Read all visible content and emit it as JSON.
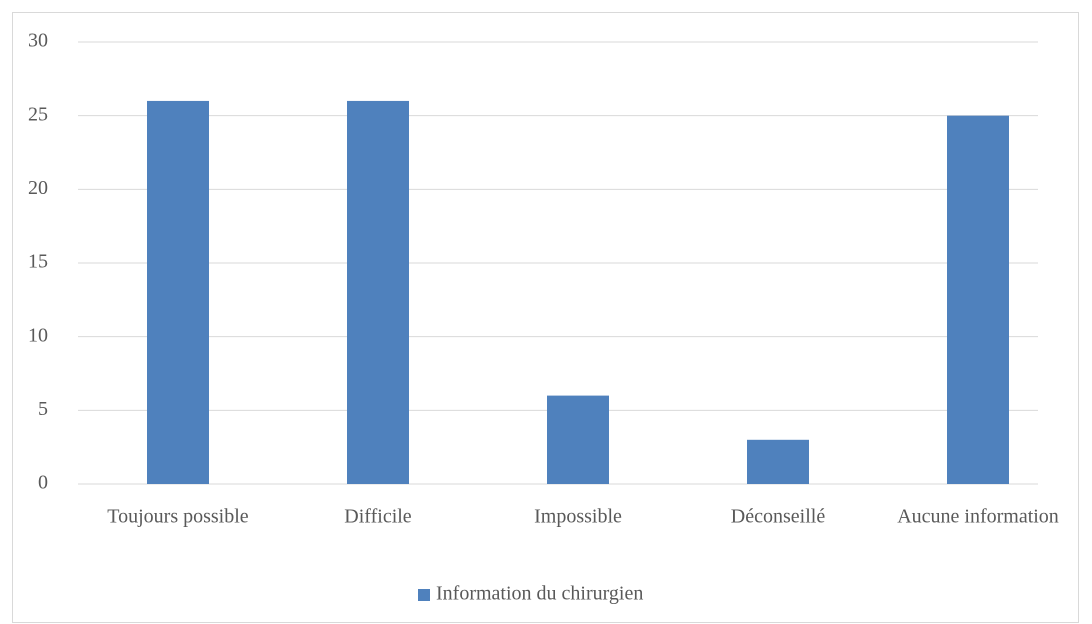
{
  "chart_data": {
    "type": "bar",
    "categories": [
      "Toujours possible",
      "Difficile",
      "Impossible",
      "Déconseillé",
      "Aucune information"
    ],
    "series": [
      {
        "name": "Information du chirurgien",
        "color": "#4f81bd",
        "values": [
          26,
          26,
          6,
          3,
          25
        ]
      }
    ],
    "ylim": [
      0,
      30
    ],
    "yticks": [
      0,
      5,
      10,
      15,
      20,
      25,
      30
    ],
    "grid": true,
    "legend": "bottom"
  }
}
